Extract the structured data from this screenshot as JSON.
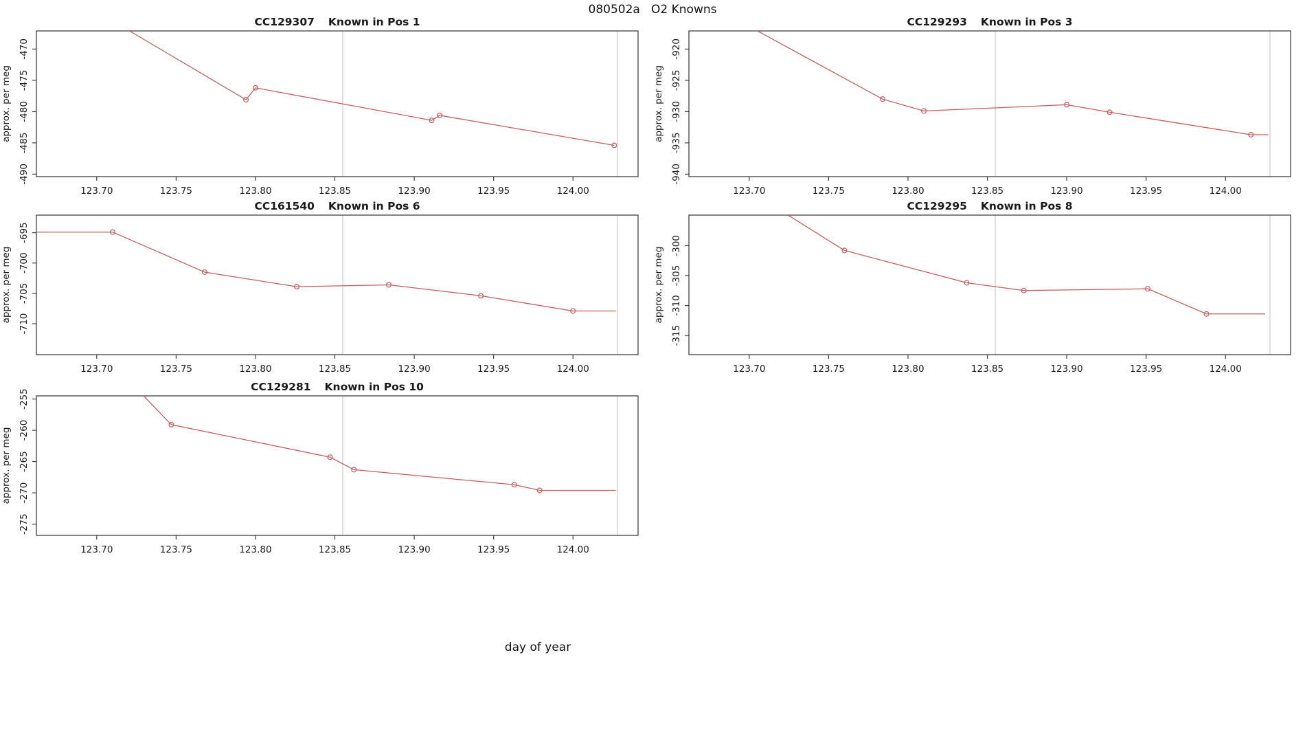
{
  "figure": {
    "title": "080502a   O2 Knowns",
    "xlabel": "day of year",
    "ylabel": "approx. per meg"
  },
  "colors": {
    "line": "#c85a5a",
    "marker": "#c85a5a",
    "vline": "#d9d9d9",
    "box": "#3f3f3f",
    "text": "#1a1a1a",
    "background": "#ffffff"
  },
  "chart_data": [
    {
      "type": "line",
      "sample_id": "CC129307",
      "position_label": "Known in Pos 1",
      "row": 0,
      "col": 0,
      "ylabel": "approx. per meg",
      "xlim": [
        123.662,
        124.041
      ],
      "ylim": [
        -490.4,
        -467.1
      ],
      "xticks": [
        123.7,
        123.75,
        123.8,
        123.85,
        123.9,
        123.95,
        124.0
      ],
      "xtick_labels": [
        "123.70",
        "123.75",
        "123.80",
        "123.85",
        "123.90",
        "123.95",
        "124.00"
      ],
      "yticks": [
        -490,
        -485,
        -480,
        -475,
        -470
      ],
      "ytick_labels": [
        "-490",
        "-485",
        "-480",
        "-475",
        "-470"
      ],
      "vlines": [
        123.855,
        124.028
      ],
      "line": [
        [
          123.7,
          -464.0
        ],
        [
          123.794,
          -478.1
        ],
        [
          123.8,
          -476.2
        ],
        [
          123.911,
          -481.4
        ],
        [
          123.916,
          -480.6
        ],
        [
          124.026,
          -485.4
        ]
      ],
      "points": [
        [
          123.794,
          -478.1
        ],
        [
          123.8,
          -476.2
        ],
        [
          123.911,
          -481.4
        ],
        [
          123.916,
          -480.6
        ],
        [
          124.026,
          -485.4
        ]
      ]
    },
    {
      "type": "line",
      "sample_id": "CC129293",
      "position_label": "Known in Pos 3",
      "row": 0,
      "col": 1,
      "ylabel": "approx. per meg",
      "xlim": [
        123.662,
        124.041
      ],
      "ylim": [
        -940.4,
        -917.1
      ],
      "xticks": [
        123.7,
        123.75,
        123.8,
        123.85,
        123.9,
        123.95,
        124.0
      ],
      "xtick_labels": [
        "123.70",
        "123.75",
        "123.80",
        "123.85",
        "123.90",
        "123.95",
        "124.00"
      ],
      "yticks": [
        -940,
        -935,
        -930,
        -925,
        -920
      ],
      "ytick_labels": [
        "-940",
        "-935",
        "-930",
        "-925",
        "-920"
      ],
      "vlines": [
        123.855,
        124.028
      ],
      "line": [
        [
          123.69,
          -915.0
        ],
        [
          123.784,
          -928.0
        ],
        [
          123.81,
          -929.9
        ],
        [
          123.9,
          -928.9
        ],
        [
          123.927,
          -930.1
        ],
        [
          124.016,
          -933.7
        ],
        [
          124.027,
          -933.7
        ]
      ],
      "points": [
        [
          123.784,
          -928.0
        ],
        [
          123.81,
          -929.9
        ],
        [
          123.9,
          -928.9
        ],
        [
          123.927,
          -930.1
        ],
        [
          124.016,
          -933.7
        ]
      ]
    },
    {
      "type": "line",
      "sample_id": "CC161540",
      "position_label": "Known in Pos 6",
      "row": 1,
      "col": 0,
      "ylabel": "approx. per meg",
      "xlim": [
        123.662,
        124.041
      ],
      "ylim": [
        -715.1,
        -692.1
      ],
      "xticks": [
        123.7,
        123.75,
        123.8,
        123.85,
        123.9,
        123.95,
        124.0
      ],
      "xtick_labels": [
        "123.70",
        "123.75",
        "123.80",
        "123.85",
        "123.90",
        "123.95",
        "124.00"
      ],
      "yticks": [
        -710,
        -705,
        -700,
        -695
      ],
      "ytick_labels": [
        "-710",
        "-705",
        "-700",
        "-695"
      ],
      "vlines": [
        123.855,
        124.028
      ],
      "line": [
        [
          123.662,
          -694.9
        ],
        [
          123.71,
          -694.9
        ],
        [
          123.768,
          -701.5
        ],
        [
          123.826,
          -703.9
        ],
        [
          123.884,
          -703.6
        ],
        [
          123.942,
          -705.4
        ],
        [
          124.0,
          -707.9
        ],
        [
          124.027,
          -707.9
        ]
      ],
      "points": [
        [
          123.71,
          -694.9
        ],
        [
          123.768,
          -701.5
        ],
        [
          123.826,
          -703.9
        ],
        [
          123.884,
          -703.6
        ],
        [
          123.942,
          -705.4
        ],
        [
          124.0,
          -707.9
        ]
      ]
    },
    {
      "type": "line",
      "sample_id": "CC129295",
      "position_label": "Known in Pos 8",
      "row": 1,
      "col": 1,
      "ylabel": "approx. per meg",
      "xlim": [
        123.662,
        124.041
      ],
      "ylim": [
        -318.2,
        -294.9
      ],
      "xticks": [
        123.7,
        123.75,
        123.8,
        123.85,
        123.9,
        123.95,
        124.0
      ],
      "xtick_labels": [
        "123.70",
        "123.75",
        "123.80",
        "123.85",
        "123.90",
        "123.95",
        "124.00"
      ],
      "yticks": [
        -315,
        -310,
        -305,
        -300
      ],
      "ytick_labels": [
        "-315",
        "-310",
        "-305",
        "-300"
      ],
      "vlines": [
        123.855,
        124.028
      ],
      "line": [
        [
          123.71,
          -292.5
        ],
        [
          123.76,
          -300.8
        ],
        [
          123.837,
          -306.2
        ],
        [
          123.873,
          -307.5
        ],
        [
          123.951,
          -307.2
        ],
        [
          123.988,
          -311.4
        ],
        [
          124.025,
          -311.4
        ]
      ],
      "points": [
        [
          123.76,
          -300.8
        ],
        [
          123.837,
          -306.2
        ],
        [
          123.873,
          -307.5
        ],
        [
          123.951,
          -307.2
        ],
        [
          123.988,
          -311.4
        ]
      ]
    },
    {
      "type": "line",
      "sample_id": "CC129281",
      "position_label": "Known in Pos 10",
      "row": 2,
      "col": 0,
      "ylabel": "approx. per meg",
      "xlim": [
        123.662,
        124.041
      ],
      "ylim": [
        -276.8,
        -254.5
      ],
      "xticks": [
        123.7,
        123.75,
        123.8,
        123.85,
        123.9,
        123.95,
        124.0
      ],
      "xtick_labels": [
        "123.70",
        "123.75",
        "123.80",
        "123.85",
        "123.90",
        "123.95",
        "124.00"
      ],
      "yticks": [
        -275,
        -270,
        -265,
        -260,
        -255
      ],
      "ytick_labels": [
        "-275",
        "-270",
        "-265",
        "-260",
        "-255"
      ],
      "vlines": [
        123.855,
        124.028
      ],
      "line": [
        [
          123.72,
          -252.0
        ],
        [
          123.747,
          -259.1
        ],
        [
          123.847,
          -264.3
        ],
        [
          123.862,
          -266.3
        ],
        [
          123.963,
          -268.7
        ],
        [
          123.979,
          -269.6
        ],
        [
          124.027,
          -269.6
        ]
      ],
      "points": [
        [
          123.747,
          -259.1
        ],
        [
          123.847,
          -264.3
        ],
        [
          123.862,
          -266.3
        ],
        [
          123.963,
          -268.7
        ],
        [
          123.979,
          -269.6
        ]
      ]
    }
  ]
}
